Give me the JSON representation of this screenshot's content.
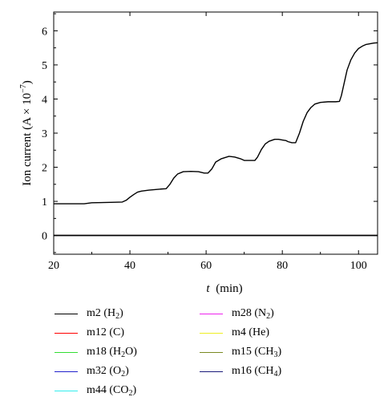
{
  "chart_data": {
    "type": "line",
    "xlabel_var": "t",
    "xlabel_unit": "(min)",
    "ylabel": "Ion current (A × 10",
    "ylabel_exp": "−7",
    "ylabel_tail": ")",
    "xlim": [
      20,
      105
    ],
    "ylim": [
      -0.55,
      6.55
    ],
    "xticks": [
      20,
      40,
      60,
      80,
      100
    ],
    "yticks": [
      0,
      1,
      2,
      3,
      4,
      5,
      6
    ],
    "series": [
      {
        "name": "m2 (H2)",
        "color": "#000000",
        "x": [
          20,
          25,
          28,
          30,
          35,
          38,
          39,
          40,
          41,
          42,
          43,
          45,
          48,
          49.5,
          50.5,
          51.5,
          52.5,
          54,
          56,
          58,
          59.5,
          60.5,
          61.5,
          62.5,
          64,
          66,
          67.5,
          69,
          70,
          72,
          72.8,
          73.5,
          74.5,
          75.5,
          76.5,
          78,
          79,
          80,
          81,
          81.5,
          82.5,
          83.5,
          84.5,
          85.5,
          86.5,
          87.5,
          88.5,
          90,
          92,
          94,
          95,
          95.5,
          96.5,
          97,
          98,
          99,
          100,
          101,
          102,
          103,
          104,
          105
        ],
        "y": [
          0.93,
          0.93,
          0.93,
          0.96,
          0.97,
          0.98,
          1.03,
          1.12,
          1.2,
          1.27,
          1.3,
          1.33,
          1.36,
          1.37,
          1.5,
          1.68,
          1.8,
          1.87,
          1.88,
          1.87,
          1.83,
          1.83,
          1.95,
          2.15,
          2.25,
          2.32,
          2.3,
          2.25,
          2.2,
          2.2,
          2.2,
          2.3,
          2.52,
          2.68,
          2.76,
          2.82,
          2.82,
          2.8,
          2.78,
          2.75,
          2.72,
          2.72,
          3.0,
          3.35,
          3.6,
          3.75,
          3.85,
          3.9,
          3.92,
          3.92,
          3.93,
          4.1,
          4.6,
          4.85,
          5.15,
          5.35,
          5.48,
          5.55,
          5.6,
          5.62,
          5.64,
          5.65
        ]
      },
      {
        "name": "m12 (C)",
        "color": "#ff0000",
        "x": [
          20,
          105
        ],
        "y": [
          0,
          0
        ]
      },
      {
        "name": "m18 (H2O)",
        "color": "#33dd33",
        "x": [
          20,
          105
        ],
        "y": [
          0,
          0
        ]
      },
      {
        "name": "m32 (O2)",
        "color": "#2222cc",
        "x": [
          20,
          105
        ],
        "y": [
          0,
          0
        ]
      },
      {
        "name": "m44 (CO2)",
        "color": "#33eeee",
        "x": [
          20,
          105
        ],
        "y": [
          0,
          0
        ]
      },
      {
        "name": "m28 (N2)",
        "color": "#ee22ee",
        "x": [
          20,
          105
        ],
        "y": [
          0,
          0
        ]
      },
      {
        "name": "m4 (He)",
        "color": "#eeee22",
        "x": [
          20,
          105
        ],
        "y": [
          0,
          0
        ]
      },
      {
        "name": "m15 (CH3)",
        "color": "#7a8a22",
        "x": [
          20,
          105
        ],
        "y": [
          0,
          0
        ]
      },
      {
        "name": "m16 (CH4)",
        "color": "#1a1a7a",
        "x": [
          20,
          105
        ],
        "y": [
          0,
          0
        ]
      }
    ],
    "legend": {
      "placement": "below",
      "items": [
        {
          "prefix": "m2 (H",
          "sub": "2",
          "suffix": ")",
          "color": "#000000"
        },
        {
          "prefix": "m12 (C)",
          "sub": "",
          "suffix": "",
          "color": "#ff0000"
        },
        {
          "prefix": "m18 (H",
          "sub": "2",
          "suffix": "O)",
          "color": "#33dd33"
        },
        {
          "prefix": "m32 (O",
          "sub": "2",
          "suffix": ")",
          "color": "#2222cc"
        },
        {
          "prefix": "m44 (CO",
          "sub": "2",
          "suffix": ")",
          "color": "#33eeee"
        },
        {
          "prefix": "m28 (N",
          "sub": "2",
          "suffix": ")",
          "color": "#ee22ee"
        },
        {
          "prefix": "m4 (He)",
          "sub": "",
          "suffix": "",
          "color": "#eeee22"
        },
        {
          "prefix": "m15 (CH",
          "sub": "3",
          "suffix": ")",
          "color": "#7a8a22"
        },
        {
          "prefix": "m16 (CH",
          "sub": "4",
          "suffix": ")",
          "color": "#1a1a7a"
        }
      ]
    },
    "grid": false
  }
}
